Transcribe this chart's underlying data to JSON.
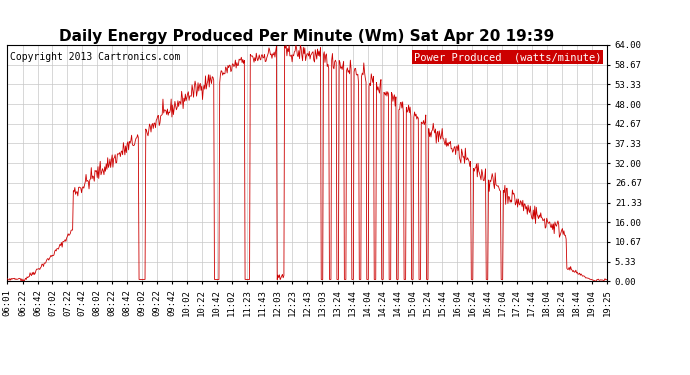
{
  "title": "Daily Energy Produced Per Minute (Wm) Sat Apr 20 19:39",
  "copyright": "Copyright 2013 Cartronics.com",
  "legend_label": "Power Produced  (watts/minute)",
  "legend_bg": "#cc0000",
  "legend_fg": "#ffffff",
  "line_color": "#cc0000",
  "background_color": "#ffffff",
  "grid_color": "#c8c8c8",
  "ymin": 0.0,
  "ymax": 64.0,
  "yticks": [
    0.0,
    5.33,
    10.67,
    16.0,
    21.33,
    26.67,
    32.0,
    37.33,
    42.67,
    48.0,
    53.33,
    58.67,
    64.0
  ],
  "ytick_labels": [
    "0.00",
    "5.33",
    "10.67",
    "16.00",
    "21.33",
    "26.67",
    "32.00",
    "37.33",
    "42.67",
    "48.00",
    "53.33",
    "58.67",
    "64.00"
  ],
  "xtick_labels": [
    "06:01",
    "06:22",
    "06:42",
    "07:02",
    "07:22",
    "07:42",
    "08:02",
    "08:22",
    "08:42",
    "09:02",
    "09:22",
    "09:42",
    "10:02",
    "10:22",
    "10:42",
    "11:02",
    "11:23",
    "11:43",
    "12:03",
    "12:23",
    "12:43",
    "13:03",
    "13:24",
    "13:44",
    "14:04",
    "14:24",
    "14:44",
    "15:04",
    "15:24",
    "15:44",
    "16:04",
    "16:24",
    "16:44",
    "17:04",
    "17:24",
    "17:44",
    "18:04",
    "18:24",
    "18:44",
    "19:04",
    "19:25"
  ],
  "title_fontsize": 11,
  "copyright_fontsize": 7,
  "tick_fontsize": 6.5,
  "legend_fontsize": 7.5
}
